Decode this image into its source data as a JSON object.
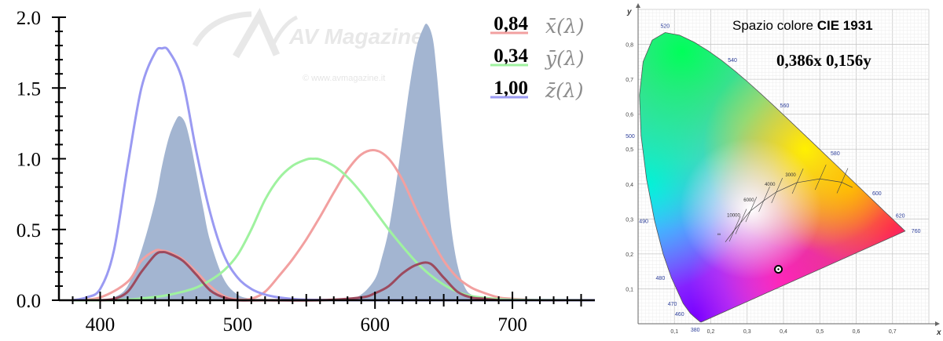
{
  "chart_data": [
    {
      "type": "line",
      "xlim": [
        370,
        760
      ],
      "ylim": [
        0,
        2.0
      ],
      "x_ticks": [
        400,
        500,
        600,
        700
      ],
      "y_ticks": [
        0.0,
        0.5,
        1.0,
        1.5,
        2.0
      ],
      "x_tick_labels": [
        "400",
        "500",
        "600",
        "700"
      ],
      "y_tick_labels": [
        "0.0",
        "0.5",
        "1.0",
        "1.5",
        "2.0"
      ],
      "grid": false,
      "legend_position": "top-right",
      "watermark": {
        "logo": "AV Magazine",
        "credit": "© www.avmagazine.it"
      },
      "spectrum": {
        "color": "#a3b5d1",
        "x": [
          400,
          410,
          420,
          430,
          440,
          445,
          450,
          455,
          458,
          462,
          466,
          470,
          475,
          480,
          490,
          500,
          510,
          520,
          530,
          560,
          580,
          590,
          600,
          605,
          610,
          615,
          620,
          625,
          630,
          635,
          638,
          642,
          645,
          650,
          655,
          660,
          665,
          670,
          680,
          690,
          700
        ],
        "y": [
          0.0,
          0.02,
          0.1,
          0.35,
          0.7,
          0.95,
          1.15,
          1.27,
          1.3,
          1.25,
          1.1,
          0.9,
          0.65,
          0.42,
          0.15,
          0.04,
          0.01,
          0.0,
          0.0,
          0.0,
          0.01,
          0.04,
          0.15,
          0.3,
          0.5,
          0.8,
          1.15,
          1.5,
          1.78,
          1.92,
          1.95,
          1.85,
          1.6,
          1.05,
          0.55,
          0.25,
          0.1,
          0.04,
          0.01,
          0.0,
          0.0
        ]
      },
      "product": {
        "color": "#9c4a5e",
        "x": [
          400,
          410,
          420,
          430,
          440,
          445,
          450,
          460,
          470,
          480,
          490,
          500,
          520,
          560,
          590,
          600,
          610,
          620,
          630,
          640,
          650,
          660,
          670,
          680,
          690
        ],
        "y": [
          0.0,
          0.01,
          0.06,
          0.2,
          0.32,
          0.34,
          0.33,
          0.28,
          0.18,
          0.07,
          0.02,
          0.0,
          0.0,
          0.0,
          0.02,
          0.05,
          0.1,
          0.19,
          0.25,
          0.26,
          0.16,
          0.06,
          0.02,
          0.01,
          0.0
        ]
      },
      "series": [
        {
          "name": "x̄(λ)",
          "color": "#f2a0a0",
          "value_label": "0,84",
          "x": [
            380,
            400,
            420,
            430,
            440,
            445,
            450,
            460,
            470,
            480,
            490,
            500,
            510,
            520,
            530,
            540,
            550,
            560,
            570,
            580,
            590,
            600,
            610,
            620,
            630,
            640,
            650,
            660,
            670,
            680,
            690,
            700,
            720,
            740,
            760
          ],
          "y": [
            0.0,
            0.02,
            0.13,
            0.28,
            0.35,
            0.35,
            0.34,
            0.29,
            0.2,
            0.1,
            0.03,
            0.005,
            0.01,
            0.06,
            0.17,
            0.29,
            0.43,
            0.59,
            0.76,
            0.92,
            1.03,
            1.06,
            1.0,
            0.85,
            0.64,
            0.45,
            0.28,
            0.16,
            0.09,
            0.05,
            0.02,
            0.01,
            0.0,
            0.0,
            0.0
          ]
        },
        {
          "name": "ȳ(λ)",
          "color": "#9ff29f",
          "value_label": "0,34",
          "x": [
            380,
            400,
            420,
            440,
            450,
            460,
            470,
            480,
            490,
            500,
            510,
            520,
            530,
            540,
            550,
            555,
            560,
            570,
            580,
            590,
            600,
            610,
            620,
            630,
            640,
            650,
            660,
            670,
            680,
            690,
            700,
            720,
            760
          ],
          "y": [
            0.0,
            0.0,
            0.004,
            0.023,
            0.038,
            0.06,
            0.09,
            0.14,
            0.21,
            0.32,
            0.5,
            0.71,
            0.86,
            0.95,
            0.995,
            1.0,
            0.995,
            0.95,
            0.87,
            0.76,
            0.63,
            0.5,
            0.38,
            0.27,
            0.18,
            0.11,
            0.06,
            0.03,
            0.017,
            0.008,
            0.004,
            0.001,
            0.0
          ]
        },
        {
          "name": "z̄(λ)",
          "color": "#9a9af2",
          "value_label": "1,00",
          "x": [
            380,
            390,
            400,
            410,
            420,
            430,
            440,
            445,
            450,
            460,
            470,
            480,
            490,
            500,
            510,
            520,
            530,
            540,
            550,
            560,
            580,
            600,
            760
          ],
          "y": [
            0.0,
            0.02,
            0.08,
            0.35,
            0.95,
            1.5,
            1.75,
            1.78,
            1.76,
            1.55,
            1.05,
            0.62,
            0.32,
            0.16,
            0.08,
            0.04,
            0.02,
            0.009,
            0.004,
            0.002,
            0.0,
            0.0,
            0.0
          ]
        }
      ]
    },
    {
      "type": "scatter",
      "title": "Spazio colore CIE 1931",
      "title_plain": "Spazio colore ",
      "title_bold": "CIE 1931",
      "xlabel": "x",
      "ylabel": "y",
      "xlim": [
        0,
        0.8
      ],
      "ylim": [
        0,
        0.9
      ],
      "x_tick_labels": [
        "0,1",
        "0,2",
        "0,3",
        "0,4",
        "0,5",
        "0,6",
        "0,7"
      ],
      "y_tick_labels": [
        "0,1",
        "0,2",
        "0,3",
        "0,4",
        "0,5",
        "0,6",
        "0,7",
        "0,8"
      ],
      "grid": true,
      "annotation": "0,386x 0,156y",
      "point": {
        "x": 0.386,
        "y": 0.156
      },
      "gamut_vertices": {
        "violet": [
          0.1741,
          0.005
        ],
        "green": [
          0.0743,
          0.8338
        ],
        "red": [
          0.7347,
          0.2653
        ]
      },
      "locus_labels": [
        {
          "text": "380",
          "x": 0.1741,
          "y": 0.005,
          "side": "below"
        },
        {
          "text": "460",
          "x": 0.144,
          "y": 0.0297,
          "side": "left"
        },
        {
          "text": "470",
          "x": 0.1241,
          "y": 0.0578,
          "side": "left"
        },
        {
          "text": "480",
          "x": 0.0913,
          "y": 0.1327,
          "side": "left"
        },
        {
          "text": "490",
          "x": 0.0454,
          "y": 0.295,
          "side": "left"
        },
        {
          "text": "500",
          "x": 0.0082,
          "y": 0.5384,
          "side": "left"
        },
        {
          "text": "520",
          "x": 0.0743,
          "y": 0.8338,
          "side": "above"
        },
        {
          "text": "540",
          "x": 0.2296,
          "y": 0.7543,
          "side": "right"
        },
        {
          "text": "560",
          "x": 0.3731,
          "y": 0.6245,
          "side": "right"
        },
        {
          "text": "580",
          "x": 0.5125,
          "y": 0.4866,
          "side": "right"
        },
        {
          "text": "600",
          "x": 0.627,
          "y": 0.3725,
          "side": "right"
        },
        {
          "text": "620",
          "x": 0.6915,
          "y": 0.3083,
          "side": "right"
        },
        {
          "text": "760",
          "x": 0.7347,
          "y": 0.2653,
          "side": "right"
        }
      ],
      "planckian_labels": [
        {
          "text": "3000",
          "x": 0.437,
          "y": 0.404
        },
        {
          "text": "4000",
          "x": 0.38,
          "y": 0.377
        },
        {
          "text": "6000",
          "x": 0.322,
          "y": 0.332
        },
        {
          "text": "10000",
          "x": 0.28,
          "y": 0.288
        },
        {
          "text": "∞",
          "x": 0.24,
          "y": 0.234
        }
      ],
      "planckian_locus": {
        "x": [
          0.24,
          0.264,
          0.281,
          0.309,
          0.345,
          0.38,
          0.437,
          0.5,
          0.56,
          0.59
        ],
        "y": [
          0.234,
          0.267,
          0.288,
          0.323,
          0.352,
          0.377,
          0.404,
          0.415,
          0.405,
          0.39
        ]
      }
    }
  ]
}
